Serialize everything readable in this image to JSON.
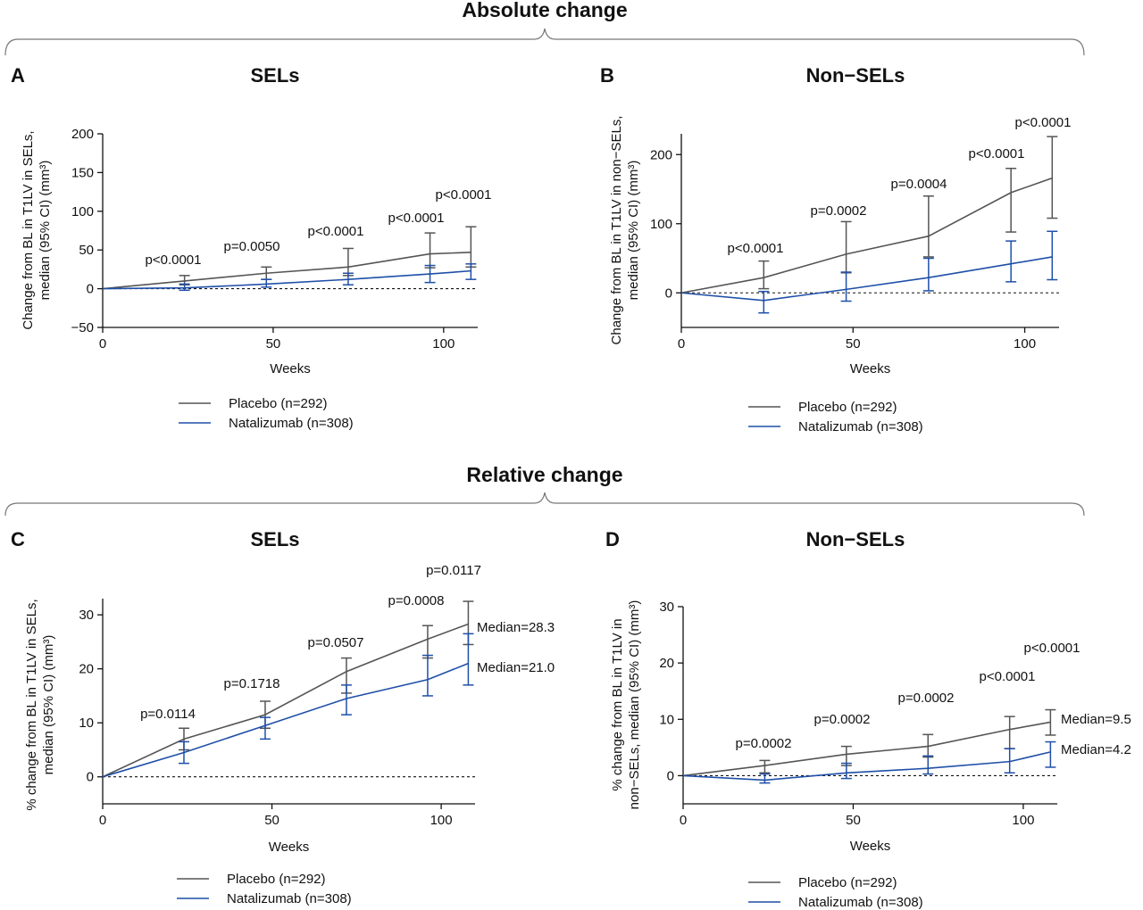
{
  "headers": {
    "absolute": "Absolute change",
    "relative": "Relative change"
  },
  "colors": {
    "placebo": "#555555",
    "natalizumab": "#1f4fa8"
  },
  "chart_data": [
    {
      "type": "line",
      "id": "A",
      "letter": "A",
      "title": "SELs",
      "xlabel": "Weeks",
      "ylabel": [
        "Change from BL in T1LV in SELs,",
        "median (95% CI) (mm³)"
      ],
      "xlim": [
        0,
        110
      ],
      "ylim": [
        -50,
        200
      ],
      "xticks": [
        0,
        50,
        100
      ],
      "yticks": [
        -50,
        0,
        50,
        100,
        150,
        200
      ],
      "x": [
        0,
        24,
        48,
        72,
        96,
        108
      ],
      "series": [
        {
          "name": "Placebo (n=292)",
          "color": "#555555",
          "values": [
            0,
            10,
            20,
            28,
            45,
            47
          ],
          "ci": [
            null,
            [
              5,
              17
            ],
            [
              12,
              28
            ],
            [
              17,
              52
            ],
            [
              27,
              72
            ],
            [
              28,
              80
            ]
          ]
        },
        {
          "name": "Natalizumab (n=308)",
          "color": "#1f4fa8",
          "values": [
            0,
            1,
            6,
            12,
            19,
            23
          ],
          "ci": [
            null,
            [
              -2,
              6
            ],
            [
              2,
              12
            ],
            [
              5,
              20
            ],
            [
              8,
              30
            ],
            [
              12,
              32
            ]
          ]
        }
      ],
      "pvalues": [
        {
          "x": 24,
          "text": "p<0.0001"
        },
        {
          "x": 48,
          "text": "p=0.0050"
        },
        {
          "x": 72,
          "text": "p<0.0001"
        },
        {
          "x": 96,
          "text": "p<0.0001"
        },
        {
          "x": 108,
          "text": "p<0.0001"
        }
      ],
      "medians": []
    },
    {
      "type": "line",
      "id": "B",
      "letter": "B",
      "title": "Non−SELs",
      "xlabel": "Weeks",
      "ylabel": [
        "Change from BL in T1LV in non−SELs,",
        "median (95% CI) (mm³)"
      ],
      "xlim": [
        0,
        110
      ],
      "ylim": [
        -50,
        230
      ],
      "xticks": [
        0,
        50,
        100
      ],
      "yticks": [
        0,
        100,
        200
      ],
      "x": [
        0,
        24,
        48,
        72,
        96,
        108
      ],
      "series": [
        {
          "name": "Placebo (n=292)",
          "color": "#555555",
          "values": [
            0,
            22,
            56,
            82,
            145,
            166
          ],
          "ci": [
            null,
            [
              6,
              46
            ],
            [
              29,
              103
            ],
            [
              52,
              140
            ],
            [
              88,
              180
            ],
            [
              108,
              226
            ]
          ]
        },
        {
          "name": "Natalizumab (n=308)",
          "color": "#1f4fa8",
          "values": [
            0,
            -11,
            5,
            22,
            42,
            52
          ],
          "ci": [
            null,
            [
              -29,
              2
            ],
            [
              -12,
              30
            ],
            [
              3,
              50
            ],
            [
              16,
              75
            ],
            [
              19,
              89
            ]
          ]
        }
      ],
      "pvalues": [
        {
          "x": 24,
          "text": "p<0.0001"
        },
        {
          "x": 48,
          "text": "p=0.0002"
        },
        {
          "x": 72,
          "text": "p=0.0004"
        },
        {
          "x": 96,
          "text": "p<0.0001"
        },
        {
          "x": 108,
          "text": "p<0.0001"
        }
      ],
      "medians": []
    },
    {
      "type": "line",
      "id": "C",
      "letter": "C",
      "title": "SELs",
      "xlabel": "Weeks",
      "ylabel": [
        "% change from BL in T1LV in SELs,",
        "median (95% CI) (mm³)"
      ],
      "xlim": [
        0,
        110
      ],
      "ylim": [
        -5,
        33
      ],
      "xticks": [
        0,
        50,
        100
      ],
      "yticks": [
        0,
        10,
        20,
        30
      ],
      "x": [
        0,
        24,
        48,
        72,
        96,
        108
      ],
      "series": [
        {
          "name": "Placebo (n=292)",
          "color": "#555555",
          "values": [
            0,
            7,
            11.5,
            19.5,
            25.5,
            28.3
          ],
          "ci": [
            null,
            [
              5,
              9
            ],
            [
              9,
              14
            ],
            [
              15.5,
              22
            ],
            [
              22,
              28
            ],
            [
              24.5,
              32.5
            ]
          ]
        },
        {
          "name": "Natalizumab (n=308)",
          "color": "#1f4fa8",
          "values": [
            0,
            4.5,
            9.5,
            14.5,
            18,
            21.0
          ],
          "ci": [
            null,
            [
              2.5,
              6.5
            ],
            [
              7,
              11
            ],
            [
              11.5,
              17
            ],
            [
              15,
              22.5
            ],
            [
              17,
              26.5
            ]
          ]
        }
      ],
      "pvalues": [
        {
          "x": 24,
          "text": "p=0.0114"
        },
        {
          "x": 48,
          "text": "p=0.1718"
        },
        {
          "x": 72,
          "text": "p=0.0507"
        },
        {
          "x": 96,
          "text": "p=0.0008"
        },
        {
          "x": 108,
          "text": "p=0.0117"
        }
      ],
      "medians": [
        {
          "series": 0,
          "text": "Median=28.3"
        },
        {
          "series": 1,
          "text": "Median=21.0"
        }
      ]
    },
    {
      "type": "line",
      "id": "D",
      "letter": "D",
      "title": "Non−SELs",
      "xlabel": "Weeks",
      "ylabel": [
        "% change from BL in T1LV in",
        "non−SELs, median (95% CI) (mm³)"
      ],
      "xlim": [
        0,
        110
      ],
      "ylim": [
        -5,
        30
      ],
      "xticks": [
        0,
        50,
        100
      ],
      "yticks": [
        0,
        10,
        20,
        30
      ],
      "x": [
        0,
        24,
        48,
        72,
        96,
        108
      ],
      "series": [
        {
          "name": "Placebo (n=292)",
          "color": "#555555",
          "values": [
            0,
            1.8,
            3.8,
            5.2,
            8.2,
            9.5
          ],
          "ci": [
            null,
            [
              0.5,
              2.7
            ],
            [
              1.8,
              5.2
            ],
            [
              3.3,
              7.3
            ],
            [
              4.8,
              10.5
            ],
            [
              7.2,
              11.7
            ]
          ]
        },
        {
          "name": "Natalizumab (n=308)",
          "color": "#1f4fa8",
          "values": [
            0,
            -0.8,
            0.5,
            1.3,
            2.5,
            4.2
          ],
          "ci": [
            null,
            [
              -1.3,
              0.3
            ],
            [
              -0.5,
              2.2
            ],
            [
              0.3,
              3.5
            ],
            [
              0.5,
              4.8
            ],
            [
              1.5,
              6
            ]
          ]
        }
      ],
      "pvalues": [
        {
          "x": 24,
          "text": "p=0.0002"
        },
        {
          "x": 48,
          "text": "p=0.0002"
        },
        {
          "x": 72,
          "text": "p=0.0002"
        },
        {
          "x": 96,
          "text": "p<0.0001"
        },
        {
          "x": 108,
          "text": "p<0.0001"
        }
      ],
      "medians": [
        {
          "series": 0,
          "text": "Median=9.5"
        },
        {
          "series": 1,
          "text": "Median=4.2"
        }
      ]
    }
  ]
}
